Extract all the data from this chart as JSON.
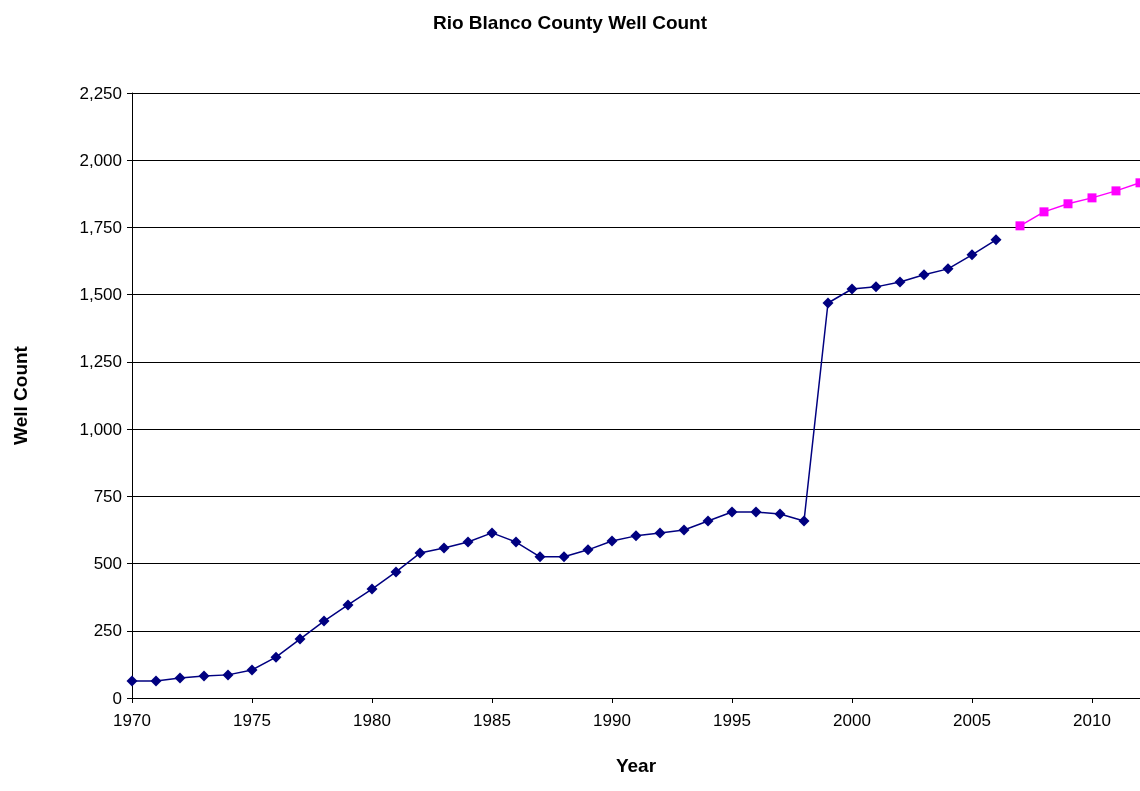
{
  "chart_data": {
    "type": "line",
    "title": "Rio Blanco County Well Count",
    "xlabel": "Year",
    "ylabel": "Well Count",
    "xlim": [
      1970,
      2012
    ],
    "xticks": [
      1970,
      1975,
      1980,
      1985,
      1990,
      1995,
      2000,
      2005,
      2010
    ],
    "ylim": [
      0,
      2250
    ],
    "yticks": [
      {
        "value": 0,
        "label": "0"
      },
      {
        "value": 250,
        "label": "250"
      },
      {
        "value": 500,
        "label": "500"
      },
      {
        "value": 750,
        "label": "750"
      },
      {
        "value": 1000,
        "label": "1,000"
      },
      {
        "value": 1250,
        "label": "1,250"
      },
      {
        "value": 1500,
        "label": "1,500"
      },
      {
        "value": 1750,
        "label": "1,750"
      },
      {
        "value": 2000,
        "label": "2,000"
      },
      {
        "value": 2250,
        "label": "2,250"
      }
    ],
    "grid": "y",
    "series": [
      {
        "color": "#000080",
        "marker": "diamond",
        "x": [
          1970,
          1971,
          1972,
          1973,
          1974,
          1975,
          1976,
          1977,
          1978,
          1979,
          1980,
          1981,
          1982,
          1983,
          1984,
          1985,
          1986,
          1987,
          1988,
          1989,
          1990,
          1991,
          1992,
          1993,
          1994,
          1995,
          1996,
          1997,
          1998,
          1999,
          2000,
          2001,
          2002,
          2003,
          2004,
          2005,
          2006
        ],
        "values": [
          63,
          63,
          74,
          82,
          86,
          104,
          152,
          219,
          286,
          346,
          405,
          469,
          539,
          558,
          580,
          614,
          580,
          525,
          525,
          551,
          584,
          603,
          614,
          625,
          658,
          692,
          692,
          684,
          658,
          1469,
          1521,
          1529,
          1547,
          1574,
          1596,
          1648,
          1704
        ]
      },
      {
        "color": "#ff00ff",
        "marker": "square",
        "x": [
          2007,
          2008,
          2009,
          2010,
          2011,
          2012
        ],
        "values": [
          1756,
          1808,
          1838,
          1860,
          1886,
          1916
        ]
      }
    ]
  }
}
